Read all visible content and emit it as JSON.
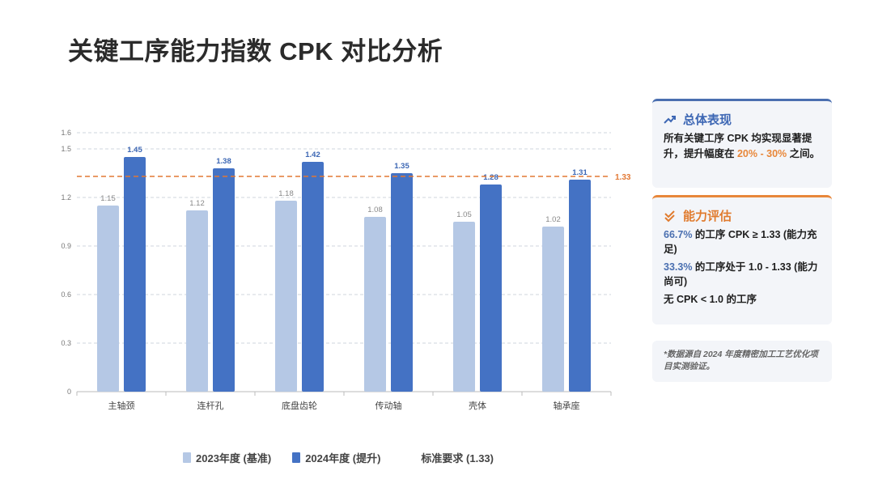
{
  "page": {
    "title": "关键工序能力指数 CPK 对比分析"
  },
  "colors": {
    "base": "#b5c8e5",
    "improved": "#4472c4",
    "threshold": "#e27834",
    "accent_orange": "#e8873a",
    "accent_blue": "#4a6fb0"
  },
  "chart_data": {
    "type": "bar",
    "categories": [
      "主轴颈",
      "连杆孔",
      "底盘齿轮",
      "传动轴",
      "壳体",
      "轴承座"
    ],
    "series": [
      {
        "name": "2023年度 (基准)",
        "values": [
          1.15,
          1.12,
          1.18,
          1.08,
          1.05,
          1.02
        ]
      },
      {
        "name": "2024年度 (提升)",
        "values": [
          1.45,
          1.38,
          1.42,
          1.35,
          1.28,
          1.31
        ]
      }
    ],
    "threshold": {
      "name": "标准要求 (1.33)",
      "value": 1.33,
      "label": "1.33"
    },
    "ylim": [
      0,
      1.6
    ],
    "yticks": [
      0,
      0.3,
      0.6,
      0.9,
      1.2,
      1.5,
      1.6
    ],
    "ytick_labels": [
      "0",
      "0.3",
      "0.6",
      "0.9",
      "1.2",
      "1.5",
      "1.6"
    ],
    "data_labels": [
      [
        "1.15",
        "1.12",
        "1.18",
        "1.08",
        "1.05",
        "1.02"
      ],
      [
        "1.45",
        "1.38",
        "1.42",
        "1.35",
        "1.28",
        "1.31"
      ]
    ],
    "grid": true,
    "legend_position": "bottom"
  },
  "cards": {
    "overall": {
      "title": "总体表现",
      "icon": "trend-up-icon",
      "text_a": "所有关键工序 CPK 均实现显著提升，提升幅度在 ",
      "text_highlight": "20% - 30%",
      "text_b": " 之间。"
    },
    "ability": {
      "title": "能力评估",
      "icon": "double-check-icon",
      "line1_pct": "66.7%",
      "line1_text": " 的工序 CPK ≥ 1.33 (能力充足)",
      "line2_pct": "33.3%",
      "line2_text": " 的工序处于 1.0 - 1.33 (能力尚可)",
      "line3": "无 CPK < 1.0 的工序"
    },
    "note": {
      "text": "*数据源自 2024 年度精密加工工艺优化项目实测验证。"
    }
  },
  "legend": {
    "base": "2023年度 (基准)",
    "improved": "2024年度 (提升)",
    "threshold": "标准要求 (1.33)"
  }
}
